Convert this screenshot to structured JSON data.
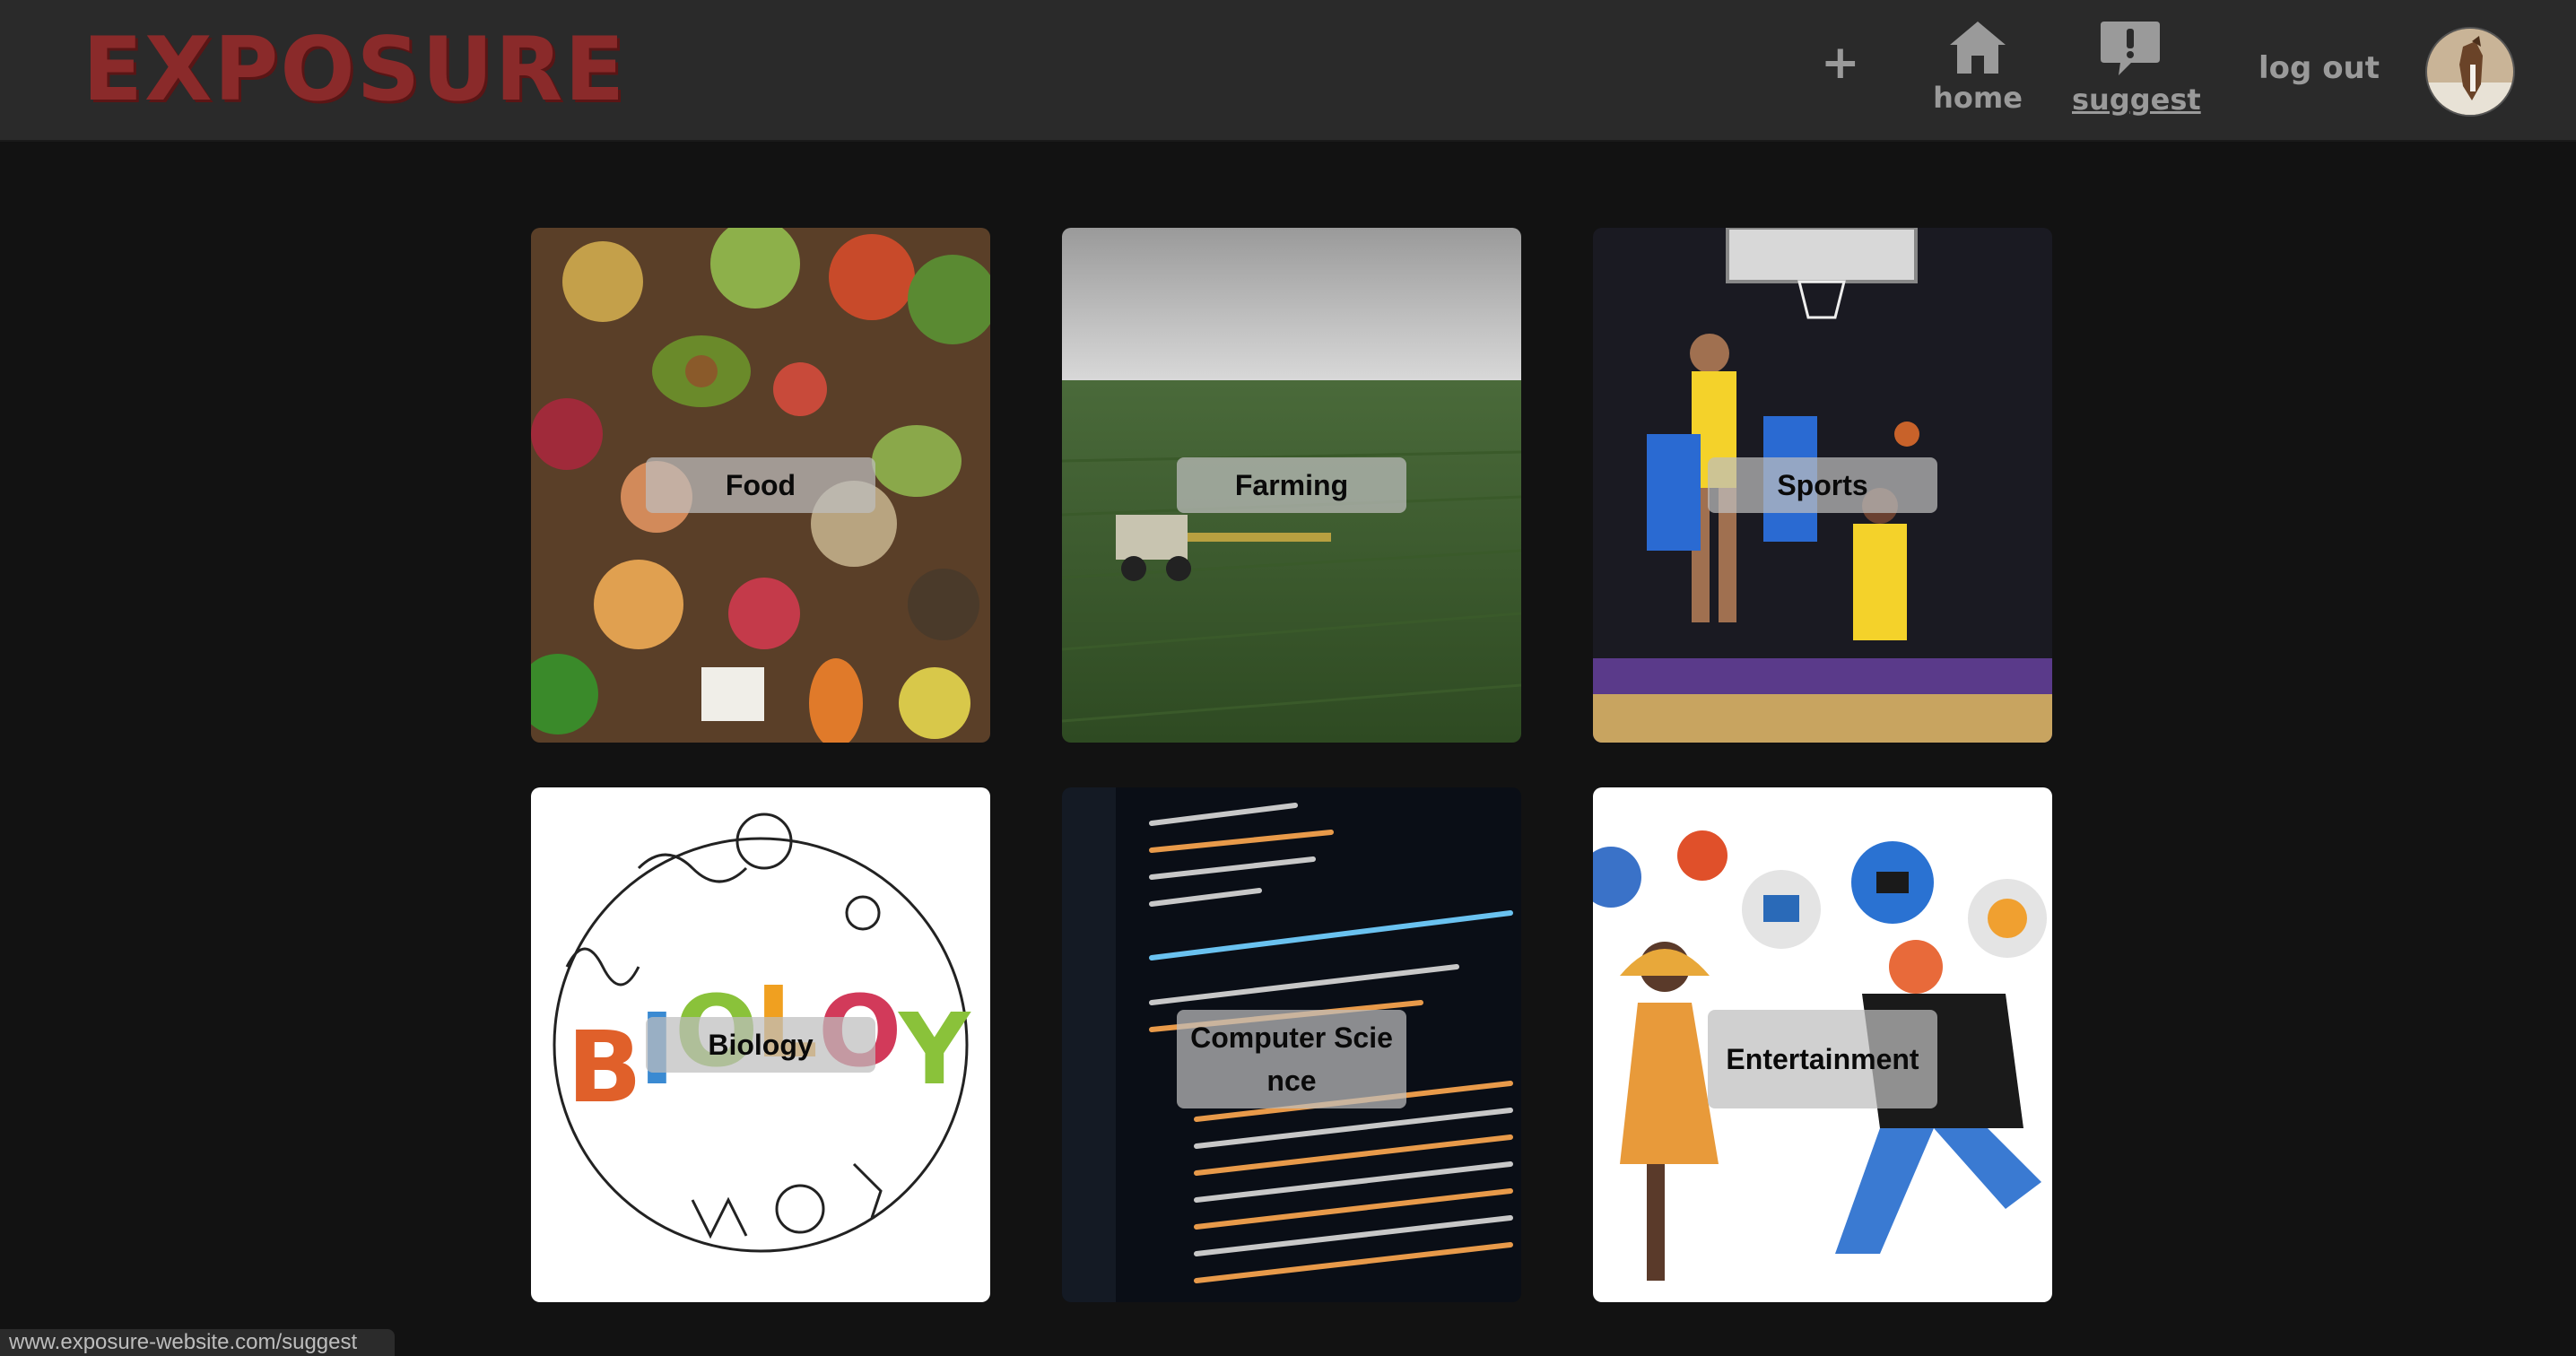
{
  "header": {
    "logo": "EXPOSURE",
    "nav": {
      "add_label": "+",
      "home_label": "home",
      "suggest_label": "suggest",
      "logout_label": "log out"
    }
  },
  "topics": [
    {
      "label": "Food"
    },
    {
      "label": "Farming"
    },
    {
      "label": "Sports"
    },
    {
      "label": "Biology"
    },
    {
      "label": "Computer Science"
    },
    {
      "label": "Entertainment"
    }
  ],
  "status_url": "www.exposure-website.com/suggest",
  "colors": {
    "background": "#121212",
    "header": "#2a2a2a",
    "logo": "#8a2a2a",
    "nav_text": "#9a9a9a"
  }
}
